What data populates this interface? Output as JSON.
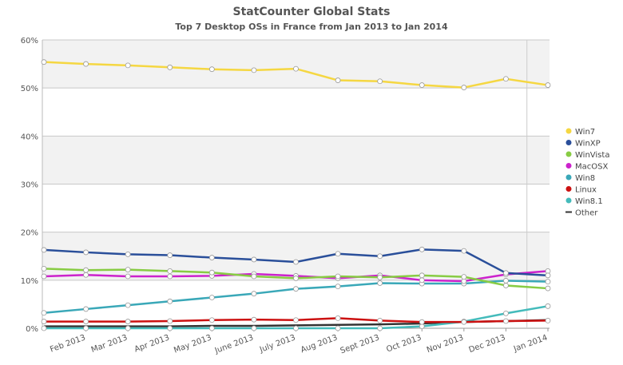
{
  "header": {
    "title": "StatCounter Global Stats",
    "subtitle": "Top 7 Desktop OSs in France from Jan 2013 to Jan 2014"
  },
  "chart_data": {
    "type": "line",
    "title": "StatCounter Global Stats",
    "subtitle": "Top 7 Desktop OSs in France from Jan 2013 to Jan 2014",
    "xlabel": "",
    "ylabel": "",
    "ylim": [
      0,
      60
    ],
    "yticks": [
      0,
      10,
      20,
      30,
      40,
      50,
      60
    ],
    "ytick_labels": [
      "0%",
      "10%",
      "20%",
      "30%",
      "40%",
      "50%",
      "60%"
    ],
    "x_tick_labels": [
      "Feb 2013",
      "Mar 2013",
      "Apr 2013",
      "May 2013",
      "June 2013",
      "July 2013",
      "Aug 2013",
      "Sept 2013",
      "Oct 2013",
      "Nov 2013",
      "Dec 2013",
      "Jan 2014"
    ],
    "grid": true,
    "legend_position": "right",
    "series": [
      {
        "name": "Win7",
        "color": "#f5d742",
        "values": [
          55.4,
          55.0,
          54.7,
          54.3,
          53.9,
          53.7,
          54.0,
          51.6,
          51.4,
          50.6,
          50.1,
          51.9,
          50.6
        ]
      },
      {
        "name": "WinXP",
        "color": "#2a4f9a",
        "values": [
          16.3,
          15.8,
          15.4,
          15.2,
          14.7,
          14.3,
          13.8,
          15.5,
          15.0,
          16.4,
          16.1,
          11.5,
          11.0
        ]
      },
      {
        "name": "WinVista",
        "color": "#88cc44",
        "values": [
          12.4,
          12.1,
          12.2,
          11.9,
          11.6,
          10.8,
          10.4,
          10.8,
          10.6,
          11.0,
          10.7,
          8.9,
          8.3
        ]
      },
      {
        "name": "MacOSX",
        "color": "#cc22cc",
        "values": [
          10.8,
          11.1,
          10.8,
          10.8,
          10.9,
          11.3,
          10.9,
          10.4,
          11.0,
          10.0,
          9.8,
          11.2,
          11.9
        ]
      },
      {
        "name": "Win8",
        "color": "#3aa8b8",
        "values": [
          3.2,
          4.0,
          4.8,
          5.6,
          6.4,
          7.2,
          8.2,
          8.7,
          9.4,
          9.3,
          9.3,
          9.9,
          9.7
        ]
      },
      {
        "name": "Linux",
        "color": "#cc1111",
        "values": [
          1.4,
          1.4,
          1.4,
          1.5,
          1.7,
          1.8,
          1.7,
          2.1,
          1.6,
          1.3,
          1.3,
          1.5,
          1.6
        ]
      },
      {
        "name": "Win8.1",
        "color": "#44bbbb",
        "values": [
          0.0,
          0.0,
          0.0,
          0.0,
          0.0,
          0.0,
          0.0,
          0.0,
          0.0,
          0.4,
          1.4,
          3.1,
          4.6
        ]
      },
      {
        "name": "Other",
        "color": "#333333",
        "values": [
          0.4,
          0.4,
          0.4,
          0.4,
          0.5,
          0.5,
          0.6,
          0.7,
          0.8,
          1.0,
          1.3,
          1.5,
          1.7
        ]
      }
    ]
  }
}
